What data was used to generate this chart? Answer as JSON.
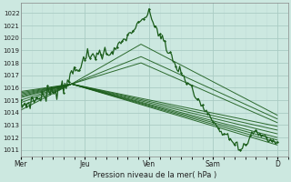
{
  "xlabel": "Pression niveau de la mer( hPa )",
  "background_color": "#cce8e0",
  "grid_color_major": "#aaccc4",
  "grid_color_minor": "#c0dcd8",
  "line_color": "#1a5c1a",
  "ylim": [
    1010.5,
    1022.8
  ],
  "yticks": [
    1011,
    1012,
    1013,
    1014,
    1015,
    1016,
    1017,
    1018,
    1019,
    1020,
    1021,
    1022
  ],
  "day_labels": [
    "Mer",
    "Jeu",
    "Ven",
    "Sam",
    "D"
  ],
  "day_positions": [
    0,
    48,
    96,
    144,
    192
  ],
  "xlim": [
    0,
    200
  ]
}
